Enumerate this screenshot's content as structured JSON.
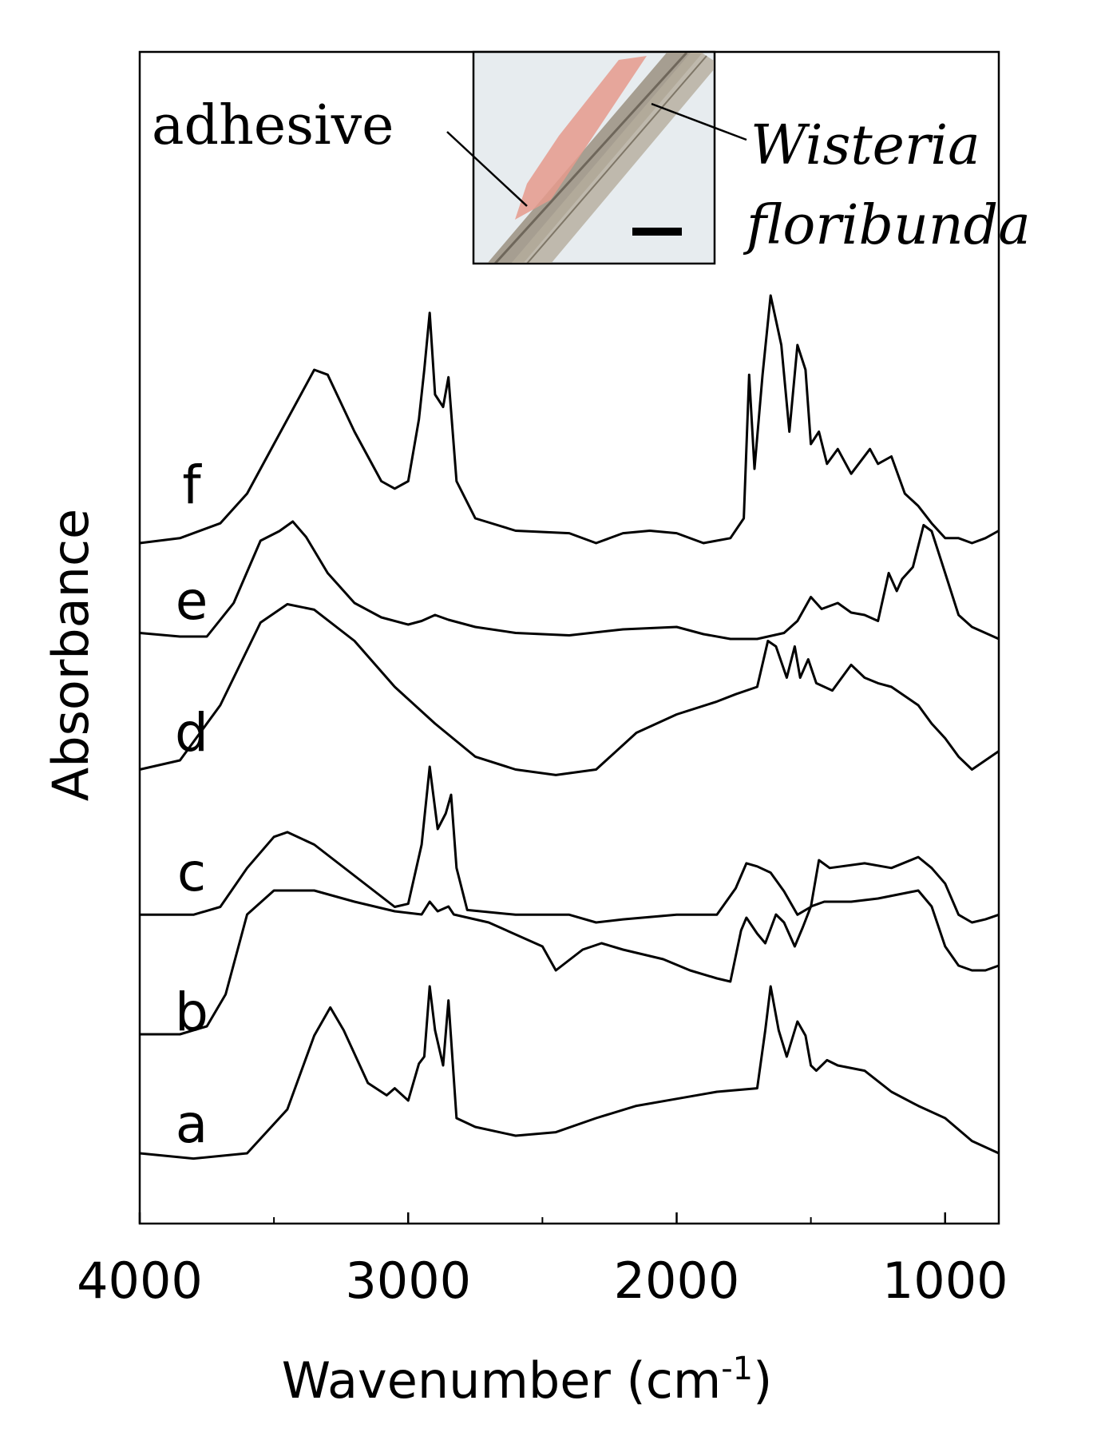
{
  "chart_data": {
    "type": "line",
    "xlabel": "Wavenumber (cm",
    "xlabel_superscript": "-1",
    "xlabel_close": ")",
    "ylabel": "Absorbance",
    "xlim": [
      4000,
      800
    ],
    "x_reversed": true,
    "xticks": [
      4000,
      3000,
      2000,
      1000
    ],
    "grid": false,
    "y_ticks_shown": false,
    "series": [
      {
        "name": "a",
        "points": [
          [
            4000,
            0.05
          ],
          [
            3800,
            0.02
          ],
          [
            3600,
            0.05
          ],
          [
            3450,
            0.3
          ],
          [
            3350,
            0.72
          ],
          [
            3290,
            0.88
          ],
          [
            3240,
            0.75
          ],
          [
            3150,
            0.45
          ],
          [
            3080,
            0.38
          ],
          [
            3050,
            0.42
          ],
          [
            3000,
            0.35
          ],
          [
            2960,
            0.56
          ],
          [
            2940,
            0.6
          ],
          [
            2920,
            1.0
          ],
          [
            2900,
            0.75
          ],
          [
            2870,
            0.55
          ],
          [
            2850,
            0.92
          ],
          [
            2820,
            0.25
          ],
          [
            2750,
            0.2
          ],
          [
            2600,
            0.15
          ],
          [
            2450,
            0.17
          ],
          [
            2300,
            0.25
          ],
          [
            2150,
            0.32
          ],
          [
            2000,
            0.36
          ],
          [
            1850,
            0.4
          ],
          [
            1700,
            0.42
          ],
          [
            1670,
            0.75
          ],
          [
            1650,
            1.0
          ],
          [
            1620,
            0.75
          ],
          [
            1590,
            0.6
          ],
          [
            1550,
            0.8
          ],
          [
            1520,
            0.72
          ],
          [
            1500,
            0.55
          ],
          [
            1480,
            0.52
          ],
          [
            1440,
            0.58
          ],
          [
            1400,
            0.55
          ],
          [
            1300,
            0.52
          ],
          [
            1200,
            0.4
          ],
          [
            1100,
            0.32
          ],
          [
            1000,
            0.25
          ],
          [
            900,
            0.12
          ],
          [
            800,
            0.05
          ]
        ]
      },
      {
        "name": "b",
        "points": [
          [
            4000,
            0.05
          ],
          [
            3850,
            0.05
          ],
          [
            3750,
            0.1
          ],
          [
            3680,
            0.3
          ],
          [
            3600,
            0.8
          ],
          [
            3500,
            0.95
          ],
          [
            3350,
            0.95
          ],
          [
            3200,
            0.88
          ],
          [
            3050,
            0.82
          ],
          [
            2950,
            0.8
          ],
          [
            2920,
            0.88
          ],
          [
            2890,
            0.82
          ],
          [
            2850,
            0.85
          ],
          [
            2830,
            0.8
          ],
          [
            2700,
            0.75
          ],
          [
            2500,
            0.6
          ],
          [
            2450,
            0.45
          ],
          [
            2350,
            0.58
          ],
          [
            2280,
            0.62
          ],
          [
            2200,
            0.58
          ],
          [
            2050,
            0.52
          ],
          [
            1950,
            0.45
          ],
          [
            1850,
            0.4
          ],
          [
            1800,
            0.38
          ],
          [
            1760,
            0.7
          ],
          [
            1740,
            0.78
          ],
          [
            1700,
            0.68
          ],
          [
            1670,
            0.62
          ],
          [
            1630,
            0.8
          ],
          [
            1600,
            0.75
          ],
          [
            1560,
            0.6
          ],
          [
            1530,
            0.72
          ],
          [
            1500,
            0.85
          ],
          [
            1450,
            0.88
          ],
          [
            1350,
            0.88
          ],
          [
            1250,
            0.9
          ],
          [
            1100,
            0.95
          ],
          [
            1050,
            0.85
          ],
          [
            1000,
            0.6
          ],
          [
            950,
            0.48
          ],
          [
            900,
            0.45
          ],
          [
            850,
            0.45
          ],
          [
            800,
            0.48
          ]
        ]
      },
      {
        "name": "c",
        "points": [
          [
            4000,
            0.05
          ],
          [
            3800,
            0.05
          ],
          [
            3700,
            0.1
          ],
          [
            3600,
            0.35
          ],
          [
            3500,
            0.55
          ],
          [
            3450,
            0.58
          ],
          [
            3350,
            0.5
          ],
          [
            3200,
            0.3
          ],
          [
            3050,
            0.1
          ],
          [
            3000,
            0.12
          ],
          [
            2950,
            0.5
          ],
          [
            2920,
            1.0
          ],
          [
            2890,
            0.6
          ],
          [
            2860,
            0.7
          ],
          [
            2840,
            0.82
          ],
          [
            2820,
            0.35
          ],
          [
            2780,
            0.08
          ],
          [
            2600,
            0.05
          ],
          [
            2400,
            0.05
          ],
          [
            2300,
            0.0
          ],
          [
            2200,
            0.02
          ],
          [
            2000,
            0.05
          ],
          [
            1850,
            0.05
          ],
          [
            1780,
            0.22
          ],
          [
            1740,
            0.38
          ],
          [
            1700,
            0.36
          ],
          [
            1650,
            0.32
          ],
          [
            1600,
            0.2
          ],
          [
            1550,
            0.05
          ],
          [
            1500,
            0.1
          ],
          [
            1470,
            0.4
          ],
          [
            1430,
            0.35
          ],
          [
            1300,
            0.38
          ],
          [
            1200,
            0.35
          ],
          [
            1100,
            0.42
          ],
          [
            1050,
            0.35
          ],
          [
            1000,
            0.25
          ],
          [
            950,
            0.05
          ],
          [
            900,
            0.0
          ],
          [
            850,
            0.02
          ],
          [
            800,
            0.05
          ]
        ]
      },
      {
        "name": "d",
        "points": [
          [
            4000,
            0.05
          ],
          [
            3850,
            0.1
          ],
          [
            3700,
            0.4
          ],
          [
            3550,
            0.85
          ],
          [
            3450,
            0.95
          ],
          [
            3350,
            0.92
          ],
          [
            3200,
            0.75
          ],
          [
            3050,
            0.5
          ],
          [
            2900,
            0.3
          ],
          [
            2750,
            0.12
          ],
          [
            2600,
            0.05
          ],
          [
            2450,
            0.02
          ],
          [
            2300,
            0.05
          ],
          [
            2150,
            0.25
          ],
          [
            2000,
            0.35
          ],
          [
            1850,
            0.42
          ],
          [
            1780,
            0.46
          ],
          [
            1700,
            0.5
          ],
          [
            1660,
            0.75
          ],
          [
            1630,
            0.72
          ],
          [
            1590,
            0.55
          ],
          [
            1560,
            0.72
          ],
          [
            1540,
            0.55
          ],
          [
            1510,
            0.65
          ],
          [
            1480,
            0.52
          ],
          [
            1420,
            0.48
          ],
          [
            1350,
            0.62
          ],
          [
            1300,
            0.55
          ],
          [
            1250,
            0.52
          ],
          [
            1200,
            0.5
          ],
          [
            1150,
            0.45
          ],
          [
            1100,
            0.4
          ],
          [
            1050,
            0.3
          ],
          [
            1000,
            0.22
          ],
          [
            950,
            0.12
          ],
          [
            900,
            0.05
          ],
          [
            850,
            0.1
          ],
          [
            800,
            0.15
          ]
        ]
      },
      {
        "name": "e",
        "points": [
          [
            4000,
            0.05
          ],
          [
            3850,
            0.02
          ],
          [
            3750,
            0.02
          ],
          [
            3650,
            0.3
          ],
          [
            3550,
            0.82
          ],
          [
            3480,
            0.9
          ],
          [
            3430,
            0.98
          ],
          [
            3380,
            0.85
          ],
          [
            3300,
            0.55
          ],
          [
            3200,
            0.3
          ],
          [
            3100,
            0.18
          ],
          [
            3000,
            0.12
          ],
          [
            2950,
            0.15
          ],
          [
            2900,
            0.2
          ],
          [
            2850,
            0.16
          ],
          [
            2750,
            0.1
          ],
          [
            2600,
            0.05
          ],
          [
            2400,
            0.03
          ],
          [
            2200,
            0.08
          ],
          [
            2000,
            0.1
          ],
          [
            1900,
            0.04
          ],
          [
            1800,
            0.0
          ],
          [
            1700,
            0.0
          ],
          [
            1600,
            0.05
          ],
          [
            1550,
            0.15
          ],
          [
            1500,
            0.35
          ],
          [
            1460,
            0.25
          ],
          [
            1400,
            0.3
          ],
          [
            1350,
            0.22
          ],
          [
            1300,
            0.2
          ],
          [
            1250,
            0.15
          ],
          [
            1210,
            0.55
          ],
          [
            1180,
            0.4
          ],
          [
            1160,
            0.5
          ],
          [
            1120,
            0.6
          ],
          [
            1080,
            0.95
          ],
          [
            1050,
            0.9
          ],
          [
            1000,
            0.55
          ],
          [
            950,
            0.2
          ],
          [
            900,
            0.1
          ],
          [
            850,
            0.05
          ],
          [
            800,
            0.0
          ]
        ]
      },
      {
        "name": "f",
        "points": [
          [
            4000,
            0.0
          ],
          [
            3850,
            0.02
          ],
          [
            3700,
            0.08
          ],
          [
            3600,
            0.2
          ],
          [
            3500,
            0.4
          ],
          [
            3400,
            0.6
          ],
          [
            3350,
            0.7
          ],
          [
            3300,
            0.68
          ],
          [
            3200,
            0.45
          ],
          [
            3100,
            0.25
          ],
          [
            3050,
            0.22
          ],
          [
            3000,
            0.25
          ],
          [
            2960,
            0.5
          ],
          [
            2940,
            0.7
          ],
          [
            2920,
            0.93
          ],
          [
            2900,
            0.6
          ],
          [
            2870,
            0.55
          ],
          [
            2850,
            0.67
          ],
          [
            2820,
            0.25
          ],
          [
            2750,
            0.1
          ],
          [
            2600,
            0.05
          ],
          [
            2400,
            0.04
          ],
          [
            2300,
            0.0
          ],
          [
            2200,
            0.04
          ],
          [
            2100,
            0.05
          ],
          [
            2000,
            0.04
          ],
          [
            1900,
            0.0
          ],
          [
            1800,
            0.02
          ],
          [
            1750,
            0.1
          ],
          [
            1730,
            0.68
          ],
          [
            1710,
            0.3
          ],
          [
            1680,
            0.68
          ],
          [
            1650,
            1.0
          ],
          [
            1610,
            0.8
          ],
          [
            1580,
            0.45
          ],
          [
            1550,
            0.8
          ],
          [
            1520,
            0.7
          ],
          [
            1500,
            0.4
          ],
          [
            1470,
            0.45
          ],
          [
            1440,
            0.32
          ],
          [
            1400,
            0.38
          ],
          [
            1350,
            0.28
          ],
          [
            1280,
            0.38
          ],
          [
            1250,
            0.32
          ],
          [
            1200,
            0.35
          ],
          [
            1150,
            0.2
          ],
          [
            1100,
            0.15
          ],
          [
            1050,
            0.08
          ],
          [
            1000,
            0.02
          ],
          [
            950,
            0.02
          ],
          [
            900,
            0.0
          ],
          [
            850,
            0.02
          ],
          [
            800,
            0.05
          ]
        ]
      }
    ],
    "inset": {
      "label_left": "adhesive",
      "label_right_line1": "Wisteria",
      "label_right_line2": "floribunda"
    }
  }
}
